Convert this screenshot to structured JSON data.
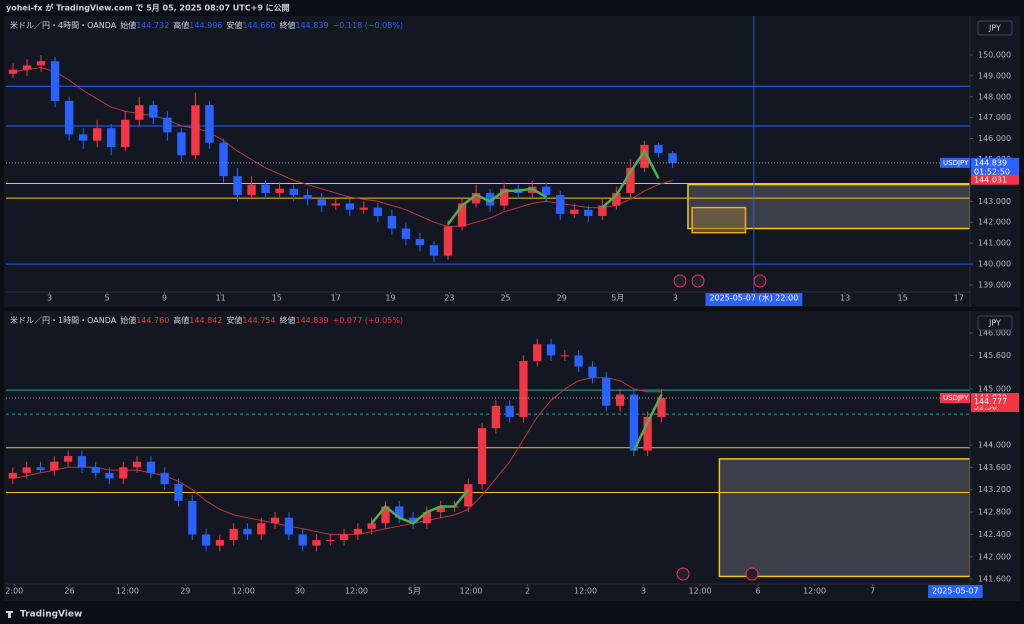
{
  "header": {
    "publisher": "yohei-fx が TradingView.com で 5月 05, 2025 08:07 UTC+9 に公開",
    "brand": "TradingView"
  },
  "chart_data": [
    {
      "type": "candlestick",
      "currency": "JPY",
      "legend": {
        "symbol": "米ドル／円・4時間・OANDA",
        "open_label": "始値",
        "open": "144.732",
        "high_label": "高値",
        "high": "144.996",
        "low_label": "安値",
        "low": "144.660",
        "close_label": "終値",
        "close": "144.839",
        "change": "−0.118 (−0.08%)",
        "color": "#2962ff"
      },
      "up_color": "#f23645",
      "down_color": "#2962ff",
      "xlim": [
        -0.5,
        68.2
      ],
      "ylim": [
        138.76,
        151.67
      ],
      "xticks": [
        {
          "value": 2.6,
          "label": "3"
        },
        {
          "value": 6.7,
          "label": "5"
        },
        {
          "value": 10.8,
          "label": "9"
        },
        {
          "value": 14.8,
          "label": "11"
        },
        {
          "value": 18.8,
          "label": "15"
        },
        {
          "value": 23,
          "label": "17"
        },
        {
          "value": 26.9,
          "label": "19"
        },
        {
          "value": 31.1,
          "label": "23"
        },
        {
          "value": 35.1,
          "label": "25"
        },
        {
          "value": 39.1,
          "label": "29"
        },
        {
          "value": 43.1,
          "label": "5月"
        },
        {
          "value": 47.2,
          "label": "3"
        },
        {
          "value": 59.3,
          "label": "13"
        },
        {
          "value": 63.4,
          "label": "15"
        },
        {
          "value": 67.4,
          "label": "17"
        }
      ],
      "yticks": [
        {
          "value": 150,
          "label": "150.000"
        },
        {
          "value": 149,
          "label": "149.000"
        },
        {
          "value": 148,
          "label": "148.000"
        },
        {
          "value": 147,
          "label": "147.000"
        },
        {
          "value": 146,
          "label": "146.000"
        },
        {
          "value": 145,
          "label": "145.000"
        },
        {
          "value": 143,
          "label": "143.000"
        },
        {
          "value": 142,
          "label": "142.000"
        },
        {
          "value": 141,
          "label": "141.000"
        },
        {
          "value": 140,
          "label": "140.000"
        },
        {
          "value": 139,
          "label": "139.000"
        }
      ],
      "x": [
        0,
        1,
        2,
        3,
        4,
        5,
        6,
        7,
        8,
        9,
        10,
        11,
        12,
        13,
        14,
        15,
        16,
        17,
        18,
        19,
        20,
        21,
        22,
        23,
        24,
        25,
        26,
        27,
        28,
        29,
        30,
        31,
        32,
        33,
        34,
        35,
        36,
        37,
        38,
        39,
        40,
        41,
        42,
        43,
        44,
        45,
        46,
        47
      ],
      "open": [
        149.1,
        149.3,
        149.5,
        149.7,
        147.8,
        146.2,
        145.9,
        146.5,
        145.6,
        146.9,
        147.6,
        147.0,
        146.3,
        145.2,
        147.6,
        145.8,
        144.2,
        143.3,
        143.8,
        143.4,
        143.6,
        143.3,
        143.1,
        142.8,
        142.9,
        142.6,
        142.7,
        142.3,
        141.7,
        141.2,
        140.9,
        140.4,
        141.8,
        142.9,
        143.4,
        142.8,
        143.6,
        143.4,
        143.7,
        143.3,
        142.4,
        142.6,
        142.3,
        142.8,
        143.4,
        144.6,
        145.7,
        145.3
      ],
      "high": [
        149.6,
        149.8,
        150.0,
        149.9,
        148.0,
        146.5,
        146.9,
        146.7,
        147.3,
        148.0,
        147.8,
        147.3,
        146.5,
        148.2,
        147.8,
        146.0,
        144.6,
        144.2,
        144.0,
        143.9,
        143.8,
        143.6,
        143.4,
        143.2,
        143.1,
        143.0,
        142.9,
        142.6,
        142.0,
        141.5,
        141.1,
        142.1,
        143.2,
        143.8,
        143.6,
        143.9,
        143.8,
        144.0,
        143.9,
        143.5,
        142.9,
        142.8,
        143.1,
        143.7,
        145.0,
        145.9,
        145.8,
        145.4
      ],
      "low": [
        148.9,
        149.0,
        149.2,
        147.5,
        145.9,
        145.5,
        145.6,
        145.2,
        145.4,
        146.6,
        146.7,
        145.9,
        144.9,
        145.0,
        145.5,
        143.9,
        143.0,
        143.1,
        143.1,
        143.2,
        143.0,
        142.8,
        142.5,
        142.6,
        142.3,
        142.4,
        142.0,
        141.4,
        140.9,
        140.6,
        140.1,
        140.2,
        141.6,
        142.7,
        142.5,
        142.6,
        143.1,
        143.2,
        143.0,
        142.1,
        142.2,
        142.0,
        142.1,
        142.6,
        143.2,
        144.4,
        145.1,
        144.6
      ],
      "close": [
        149.3,
        149.5,
        149.7,
        147.8,
        146.2,
        145.9,
        146.5,
        145.6,
        146.9,
        147.6,
        147.0,
        146.3,
        145.2,
        147.6,
        145.8,
        144.2,
        143.3,
        143.8,
        143.4,
        143.6,
        143.3,
        143.1,
        142.8,
        142.9,
        142.6,
        142.7,
        142.3,
        141.7,
        141.2,
        140.9,
        140.4,
        141.8,
        142.9,
        143.4,
        142.8,
        143.6,
        143.4,
        143.7,
        143.3,
        142.4,
        142.6,
        142.3,
        142.8,
        143.4,
        144.6,
        145.7,
        145.3,
        144.839
      ],
      "ma": {
        "color": "#b7383d",
        "values": [
          149.2,
          149.3,
          149.4,
          149.2,
          148.8,
          148.3,
          147.9,
          147.5,
          147.3,
          147.2,
          147.1,
          146.9,
          146.6,
          146.5,
          146.3,
          145.9,
          145.4,
          145.0,
          144.6,
          144.3,
          144.0,
          143.8,
          143.6,
          143.4,
          143.2,
          143.1,
          143.0,
          142.8,
          142.6,
          142.3,
          142.0,
          141.8,
          141.8,
          142.0,
          142.2,
          142.5,
          142.7,
          142.9,
          143.0,
          142.9,
          142.8,
          142.7,
          142.7,
          142.8,
          143.1,
          143.5,
          143.8,
          144.0
        ]
      },
      "signal": {
        "color": "#4caf50",
        "values": [
          null,
          null,
          null,
          null,
          null,
          null,
          null,
          null,
          null,
          null,
          null,
          null,
          null,
          null,
          null,
          null,
          null,
          null,
          null,
          null,
          null,
          null,
          null,
          null,
          null,
          null,
          null,
          null,
          null,
          null,
          null,
          141.9,
          142.8,
          143.3,
          143.0,
          143.5,
          143.5,
          143.6,
          143.2,
          null,
          null,
          null,
          142.7,
          143.3,
          144.4,
          145.4,
          144.1,
          null
        ]
      },
      "levels": [
        {
          "value": 148.5,
          "color": "#2962ff"
        },
        {
          "value": 146.6,
          "color": "#2962ff"
        },
        {
          "value": 143.85,
          "color": "#f5c518"
        },
        {
          "value": 143.15,
          "color": "#f5c518"
        },
        {
          "value": 140.0,
          "color": "#2962ff"
        }
      ],
      "boxes": [
        {
          "x": [
            48.1,
            68.2
          ],
          "y": [
            141.7,
            143.8
          ],
          "fill": "#5d606b",
          "stroke": "#f5c518"
        },
        {
          "x": [
            48.4,
            52.2
          ],
          "y": [
            141.5,
            142.7
          ],
          "fill": "#8a6d3b",
          "stroke": "#f5a623"
        }
      ],
      "crosshair": {
        "x": 52.8,
        "label": "2025-05-07 (水)   22:00",
        "line": true
      },
      "price_labels": [
        {
          "name": "USDJPY",
          "value": 144.839,
          "countdown": "01:52:50",
          "color": "#2962ff"
        },
        {
          "value": 144.031,
          "color": "#f23645"
        }
      ]
    },
    {
      "type": "candlestick",
      "currency": "JPY",
      "legend": {
        "symbol": "米ドル／円・1時間・OANDA",
        "open_label": "始値",
        "open": "144.760",
        "high_label": "高値",
        "high": "144.842",
        "low_label": "安値",
        "low": "144.754",
        "close_label": "終値",
        "close": "144.839",
        "change": "+0.077 (+0.05%)",
        "color": "#f23645"
      },
      "up_color": "#f23645",
      "down_color": "#2962ff",
      "xlim": [
        -0.5,
        69.36
      ],
      "ylim": [
        141.55,
        146.34
      ],
      "xticks": [
        {
          "value": 0.1,
          "label": "2:00"
        },
        {
          "value": 4.1,
          "label": "26"
        },
        {
          "value": 8.3,
          "label": "12:00"
        },
        {
          "value": 12.5,
          "label": "29"
        },
        {
          "value": 16.7,
          "label": "12:00"
        },
        {
          "value": 20.8,
          "label": "30"
        },
        {
          "value": 24.9,
          "label": "12:00"
        },
        {
          "value": 29.1,
          "label": "5月"
        },
        {
          "value": 33.2,
          "label": "12:00"
        },
        {
          "value": 37.3,
          "label": "2"
        },
        {
          "value": 41.5,
          "label": "12:00"
        },
        {
          "value": 45.7,
          "label": "3"
        },
        {
          "value": 49.8,
          "label": "12:00"
        },
        {
          "value": 54,
          "label": "6"
        },
        {
          "value": 58.1,
          "label": "12:00"
        },
        {
          "value": 62.3,
          "label": "7"
        }
      ],
      "yticks": [
        {
          "value": 146,
          "label": "146.000"
        },
        {
          "value": 145.6,
          "label": "145.600"
        },
        {
          "value": 145,
          "label": "145.000"
        },
        {
          "value": 144,
          "label": "144.000"
        },
        {
          "value": 143.6,
          "label": "143.600"
        },
        {
          "value": 143.2,
          "label": "143.200"
        },
        {
          "value": 142.8,
          "label": "142.800"
        },
        {
          "value": 142.4,
          "label": "142.400"
        },
        {
          "value": 142,
          "label": "142.000"
        },
        {
          "value": 141.6,
          "label": "141.600"
        }
      ],
      "x": [
        0,
        1,
        2,
        3,
        4,
        5,
        6,
        7,
        8,
        9,
        10,
        11,
        12,
        13,
        14,
        15,
        16,
        17,
        18,
        19,
        20,
        21,
        22,
        23,
        24,
        25,
        26,
        27,
        28,
        29,
        30,
        31,
        32,
        33,
        34,
        35,
        36,
        37,
        38,
        39,
        40,
        41,
        42,
        43,
        44,
        45,
        46,
        47
      ],
      "open": [
        143.4,
        143.5,
        143.6,
        143.55,
        143.7,
        143.8,
        143.6,
        143.5,
        143.4,
        143.6,
        143.7,
        143.5,
        143.3,
        143.0,
        142.4,
        142.2,
        142.3,
        142.5,
        142.4,
        142.6,
        142.7,
        142.4,
        142.2,
        142.3,
        142.3,
        142.4,
        142.5,
        142.6,
        142.9,
        142.7,
        142.6,
        142.8,
        142.9,
        142.9,
        143.3,
        144.3,
        144.7,
        144.5,
        145.5,
        145.8,
        145.6,
        145.6,
        145.4,
        145.2,
        144.7,
        144.9,
        143.9,
        144.5
      ],
      "high": [
        143.6,
        143.7,
        143.7,
        143.8,
        143.9,
        143.9,
        143.7,
        143.6,
        143.7,
        143.8,
        143.8,
        143.6,
        143.4,
        143.1,
        142.5,
        142.4,
        142.6,
        142.6,
        142.7,
        142.8,
        142.8,
        142.5,
        142.4,
        142.4,
        142.5,
        142.6,
        142.7,
        143.0,
        143.0,
        142.8,
        142.9,
        143.0,
        143.0,
        143.4,
        144.4,
        144.8,
        144.8,
        145.6,
        145.9,
        145.9,
        145.7,
        145.7,
        145.5,
        145.3,
        145.0,
        145.0,
        144.6,
        145.0
      ],
      "low": [
        143.3,
        143.4,
        143.5,
        143.45,
        143.6,
        143.5,
        143.4,
        143.3,
        143.3,
        143.5,
        143.4,
        143.2,
        142.9,
        142.3,
        142.1,
        142.1,
        142.2,
        142.3,
        142.3,
        142.5,
        142.3,
        142.1,
        142.1,
        142.2,
        142.2,
        142.3,
        142.4,
        142.5,
        142.6,
        142.5,
        142.5,
        142.7,
        142.8,
        142.8,
        143.2,
        144.2,
        144.4,
        144.4,
        145.4,
        145.5,
        145.5,
        145.3,
        145.1,
        144.6,
        144.6,
        143.8,
        143.8,
        144.4
      ],
      "close": [
        143.5,
        143.6,
        143.55,
        143.7,
        143.8,
        143.6,
        143.5,
        143.4,
        143.6,
        143.7,
        143.5,
        143.3,
        143.0,
        142.4,
        142.2,
        142.3,
        142.5,
        142.4,
        142.6,
        142.7,
        142.4,
        142.2,
        142.3,
        142.3,
        142.4,
        142.5,
        142.6,
        142.9,
        142.7,
        142.6,
        142.8,
        142.9,
        142.9,
        143.3,
        144.3,
        144.7,
        144.5,
        145.5,
        145.8,
        145.6,
        145.6,
        145.4,
        145.2,
        144.7,
        144.9,
        143.9,
        144.5,
        144.839
      ],
      "ma": {
        "color": "#b7383d",
        "values": [
          143.4,
          143.45,
          143.5,
          143.55,
          143.6,
          143.6,
          143.6,
          143.55,
          143.55,
          143.55,
          143.5,
          143.45,
          143.35,
          143.2,
          143.0,
          142.85,
          142.75,
          142.7,
          142.65,
          142.6,
          142.55,
          142.5,
          142.45,
          142.4,
          142.4,
          142.4,
          142.45,
          142.5,
          142.55,
          142.6,
          142.65,
          142.7,
          142.75,
          142.85,
          143.1,
          143.4,
          143.7,
          144.1,
          144.5,
          144.8,
          145.0,
          145.15,
          145.2,
          145.2,
          145.15,
          145.0,
          144.95,
          144.95
        ]
      },
      "signal": {
        "color": "#4caf50",
        "values": [
          null,
          null,
          null,
          null,
          null,
          null,
          null,
          null,
          null,
          null,
          null,
          null,
          null,
          null,
          null,
          null,
          null,
          null,
          null,
          null,
          null,
          null,
          null,
          null,
          null,
          null,
          142.6,
          142.9,
          142.7,
          142.6,
          142.8,
          142.9,
          142.9,
          143.2,
          null,
          null,
          null,
          null,
          null,
          null,
          null,
          null,
          null,
          null,
          null,
          143.9,
          144.4,
          144.9
        ]
      },
      "levels": [
        {
          "value": 144.98,
          "color": "#26a69a"
        },
        {
          "value": 144.55,
          "color": "#26a69a",
          "dashed": true
        },
        {
          "value": 143.95,
          "color": "#f5c518"
        },
        {
          "value": 143.15,
          "color": "#f5c518"
        }
      ],
      "boxes": [
        {
          "x": [
            51.2,
            69.36
          ],
          "y": [
            141.65,
            143.75
          ],
          "fill": "#5d606b",
          "stroke": "#f5c518"
        }
      ],
      "crosshair": {
        "x": 68.3,
        "label": "2025-05-07",
        "line": false
      },
      "price_labels": [
        {
          "name": "USDJPY",
          "value": 144.839,
          "countdown": "52:50",
          "color": "#f23645"
        },
        {
          "value": 144.777,
          "color": "#f23645"
        }
      ]
    }
  ]
}
